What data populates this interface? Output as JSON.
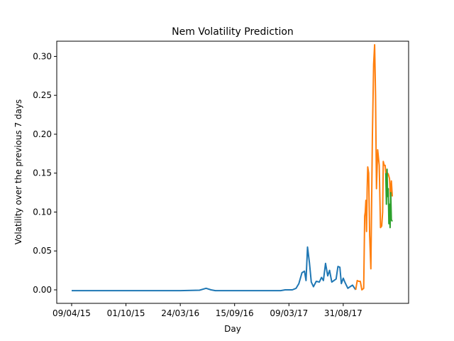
{
  "chart_data": {
    "type": "line",
    "title": "Nem Volatility Prediction",
    "xlabel": "Day",
    "ylabel": "Volatility over the previous 7 days",
    "ylim": [
      -0.016,
      0.331
    ],
    "x_tick_labels": [
      "09/04/15",
      "01/10/15",
      "24/03/16",
      "15/09/16",
      "09/03/17",
      "31/08/17"
    ],
    "y_ticks": [
      0.0,
      0.05,
      0.1,
      0.15,
      0.2,
      0.25,
      0.3
    ],
    "y_tick_labels": [
      "0.00",
      "0.05",
      "0.10",
      "0.15",
      "0.20",
      "0.25",
      "0.30"
    ],
    "grid": false,
    "legend": "none",
    "series": [
      {
        "color": "#1f77b4",
        "x": [
          "2015-04-09",
          "2015-07-15",
          "2015-10-01",
          "2016-01-15",
          "2016-03-24",
          "2016-05-25",
          "2016-06-15",
          "2016-07-01",
          "2016-07-15",
          "2016-09-15",
          "2016-12-01",
          "2017-02-10",
          "2017-02-25",
          "2017-03-09",
          "2017-03-20",
          "2017-04-01",
          "2017-04-10",
          "2017-04-20",
          "2017-04-28",
          "2017-05-03",
          "2017-05-08",
          "2017-05-14",
          "2017-05-20",
          "2017-05-27",
          "2017-06-05",
          "2017-06-15",
          "2017-06-22",
          "2017-06-28",
          "2017-07-05",
          "2017-07-12",
          "2017-07-18",
          "2017-07-25",
          "2017-08-01",
          "2017-08-08",
          "2017-08-14",
          "2017-08-20",
          "2017-08-25",
          "2017-08-31",
          "2017-09-05",
          "2017-09-10",
          "2017-09-15",
          "2017-09-22",
          "2017-09-30",
          "2017-10-10"
        ],
        "y": [
          -0.001,
          -0.001,
          -0.001,
          -0.001,
          -0.001,
          -0.0005,
          0.002,
          0.0,
          -0.001,
          -0.001,
          -0.001,
          -0.001,
          0.0,
          0.0,
          0.0,
          0.002,
          0.008,
          0.022,
          0.024,
          0.012,
          0.055,
          0.035,
          0.01,
          0.004,
          0.011,
          0.01,
          0.016,
          0.012,
          0.034,
          0.018,
          0.025,
          0.01,
          0.012,
          0.014,
          0.03,
          0.029,
          0.008,
          0.015,
          0.01,
          0.006,
          0.002,
          0.004,
          0.006,
          0.0
        ]
      },
      {
        "color": "#ff7f0e",
        "x": [
          "2017-10-10",
          "2017-10-15",
          "2017-10-20",
          "2017-10-25",
          "2017-10-30",
          "2017-11-05",
          "2017-11-08",
          "2017-11-10",
          "2017-11-12",
          "2017-11-14",
          "2017-11-16",
          "2017-11-18",
          "2017-11-21",
          "2017-11-24",
          "2017-11-28",
          "2017-12-03",
          "2017-12-07",
          "2017-12-10",
          "2017-12-13",
          "2017-12-16",
          "2017-12-20",
          "2017-12-25",
          "2017-12-29",
          "2018-01-02",
          "2018-01-05",
          "2018-01-07",
          "2018-01-10",
          "2018-01-13",
          "2018-01-15",
          "2018-01-18",
          "2018-01-20",
          "2018-01-23",
          "2018-01-27",
          "2018-01-30",
          "2018-02-02",
          "2018-02-05"
        ],
        "y": [
          0.0,
          0.012,
          0.011,
          0.011,
          0.0,
          0.002,
          0.095,
          0.1,
          0.115,
          0.075,
          0.13,
          0.158,
          0.15,
          0.07,
          0.027,
          0.2,
          0.29,
          0.315,
          0.25,
          0.13,
          0.18,
          0.16,
          0.08,
          0.082,
          0.1,
          0.165,
          0.16,
          0.16,
          0.15,
          0.14,
          0.15,
          0.149,
          0.143,
          0.12,
          0.14,
          0.12
        ]
      },
      {
        "color": "#2ca02c",
        "x": [
          "2018-01-15",
          "2018-01-17",
          "2018-01-19",
          "2018-01-21",
          "2018-01-23",
          "2018-01-25",
          "2018-01-27",
          "2018-01-29",
          "2018-01-31",
          "2018-02-02",
          "2018-02-05"
        ],
        "y": [
          0.15,
          0.11,
          0.155,
          0.12,
          0.13,
          0.085,
          0.11,
          0.08,
          0.125,
          0.09,
          0.088
        ]
      }
    ]
  }
}
